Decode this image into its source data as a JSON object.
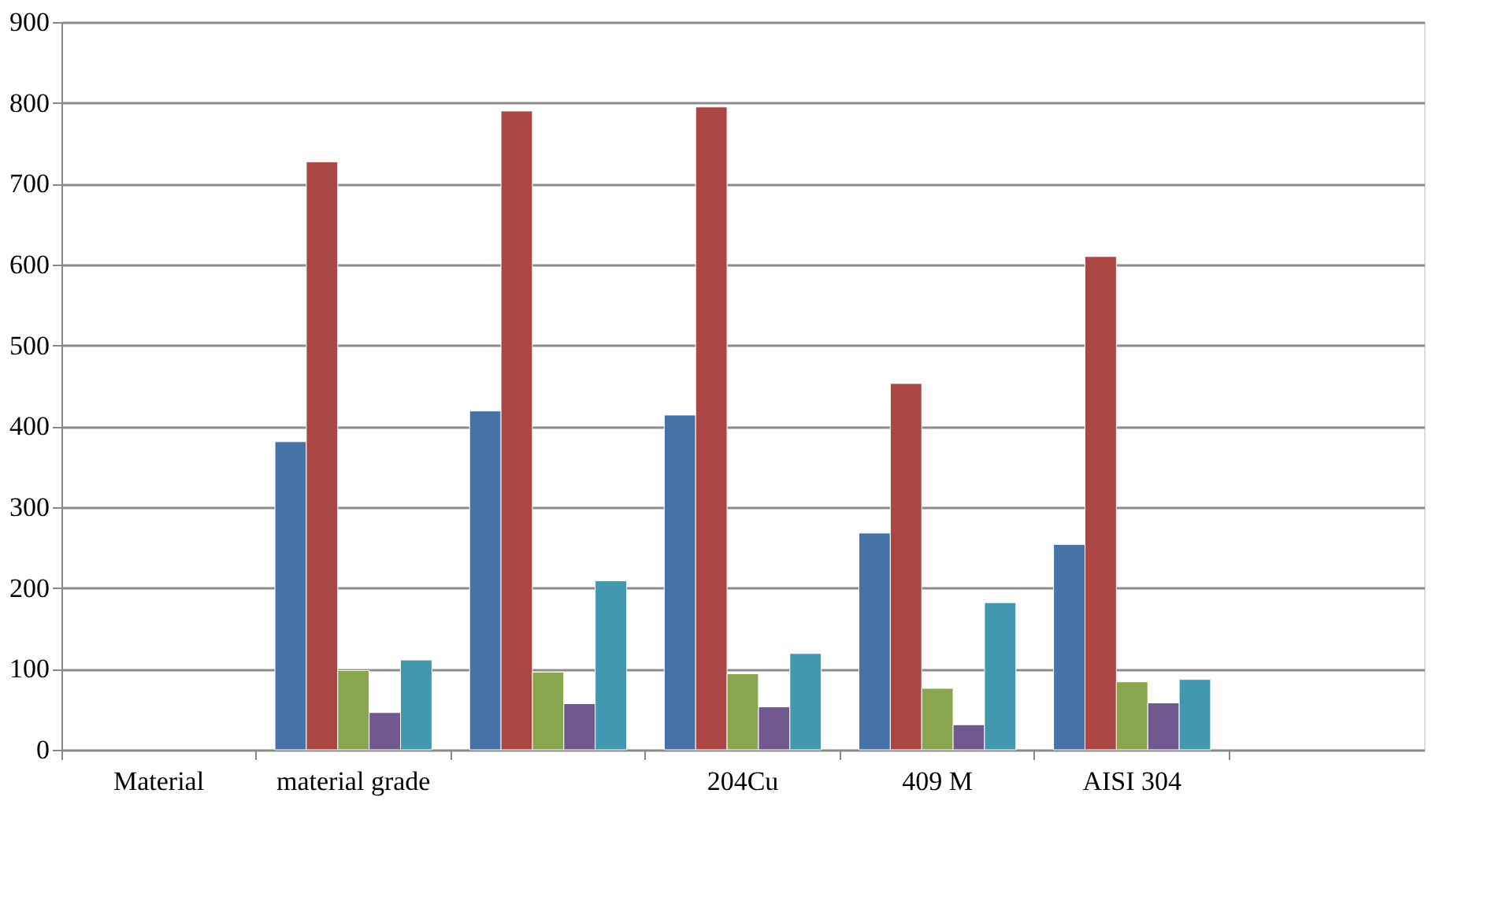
{
  "chart_data": {
    "type": "bar",
    "categories": [
      "Material",
      "material grade",
      null,
      "204Cu",
      "409 M",
      "AISI 304",
      null
    ],
    "series": [
      {
        "color": "#4572a7",
        "values": [
          null,
          381,
          419,
          414,
          268,
          254,
          null
        ]
      },
      {
        "color": "#aa4643",
        "values": [
          null,
          727,
          790,
          795,
          453,
          610,
          null
        ]
      },
      {
        "color": "#89a54e",
        "values": [
          null,
          98,
          96,
          94,
          76,
          84,
          null
        ]
      },
      {
        "color": "#71588f",
        "values": [
          null,
          46,
          57,
          53,
          31,
          58,
          null
        ]
      },
      {
        "color": "#4198af",
        "values": [
          null,
          111,
          209,
          119,
          182,
          87,
          null
        ]
      }
    ],
    "ylim": [
      0,
      900
    ],
    "yticks": [
      0,
      100,
      200,
      300,
      400,
      500,
      600,
      700,
      800,
      900
    ],
    "grid": "y",
    "legend": false
  }
}
